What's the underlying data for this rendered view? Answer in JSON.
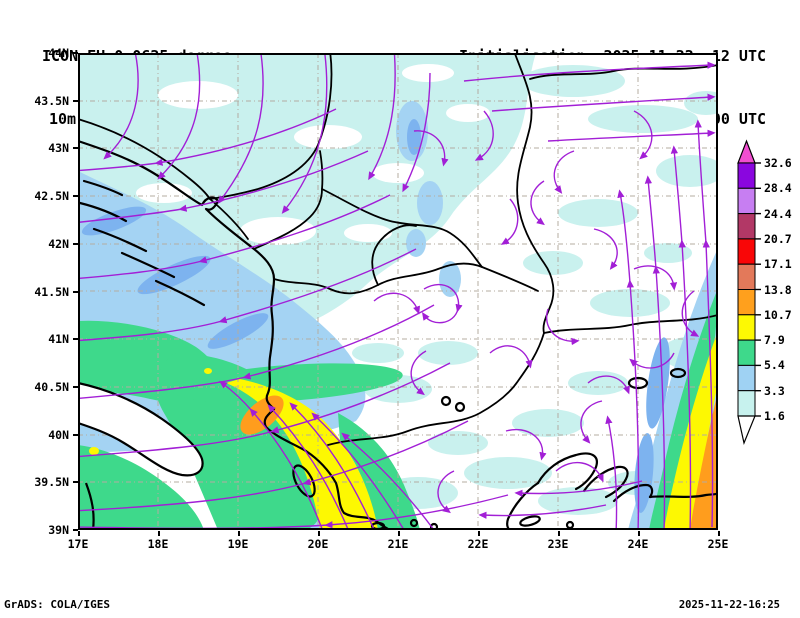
{
  "header": {
    "model_title": "ICON EU 0.0625 degree",
    "field_title": "10m Wind [m/s]",
    "init_label": "Initialisation: 2025.11.22. 12 UTC",
    "valid_label": "Valid(+108): 2025.NOV.27. 00 UTC"
  },
  "map": {
    "x_tick_labels": [
      "17E",
      "18E",
      "19E",
      "20E",
      "21E",
      "22E",
      "23E",
      "24E",
      "25E"
    ],
    "y_tick_labels": [
      "44N",
      "43.5N",
      "43N",
      "42.5N",
      "42N",
      "41.5N",
      "41N",
      "40.5N",
      "40N",
      "39.5N",
      "39N"
    ]
  },
  "colorbar": {
    "tick_labels": [
      "32.6",
      "28.4",
      "24.4",
      "20.7",
      "17.1",
      "13.8",
      "10.7",
      "7.9",
      "5.4",
      "3.3",
      "1.6"
    ],
    "segment_colors_top_to_bottom": [
      "#8a06df",
      "#c77ef2",
      "#b23866",
      "#f90607",
      "#e3795a",
      "#ffa01d",
      "#fdf903",
      "#3ed98b",
      "#9fd2f3",
      "#c7f2ee"
    ],
    "over_arrow_color": "#f14ed0",
    "under_arrow_color": "#ffffff"
  },
  "styles": {
    "streamline_color": "#a21fd6",
    "gridline_color": "#b4aca1",
    "coast_color": "#000000"
  },
  "footer": {
    "attribution": "GrADS: COLA/IGES",
    "timestamp": "2025-11-22-16:25"
  },
  "chart_data": {
    "type": "heatmap",
    "title": "10m Wind [m/s]",
    "model": "ICON EU 0.0625 degree",
    "initialisation": "2025.11.22. 12 UTC",
    "valid": "2025.NOV.27. 00 UTC (+108h)",
    "x_range": [
      "17E",
      "25E"
    ],
    "y_range": [
      "39N",
      "44N"
    ],
    "speed_levels_ms": [
      1.6,
      3.3,
      5.4,
      7.9,
      10.7,
      13.8,
      17.1,
      20.7,
      24.4,
      28.4,
      32.6
    ],
    "legend_position": "right",
    "grid": true
  }
}
